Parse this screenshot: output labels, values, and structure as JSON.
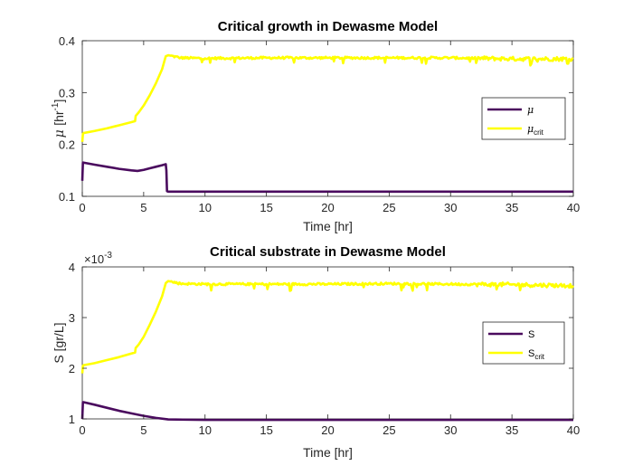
{
  "chart_data": [
    {
      "type": "line",
      "title": "Critical growth in Dewasme Model",
      "xlabel": "Time [hr]",
      "ylabel_symbol": "μ",
      "ylabel_units": "[hr",
      "ylabel_exp": "-1",
      "ylabel_close": "]",
      "xlim": [
        0,
        40
      ],
      "ylim": [
        0.1,
        0.4
      ],
      "xticks": [
        "0",
        "5",
        "10",
        "15",
        "20",
        "25",
        "30",
        "35",
        "40"
      ],
      "yticks": [
        "0.1",
        "0.2",
        "0.3",
        "0.4"
      ],
      "legend_position": "right",
      "series": [
        {
          "name": "μ",
          "color": "#4a0b5e",
          "x": [
            0,
            0.05,
            0.1,
            1,
            2,
            3,
            4,
            4.5,
            5,
            5.5,
            6,
            6.5,
            6.8,
            6.85,
            6.9,
            7,
            10,
            15,
            20,
            25,
            30,
            35,
            40
          ],
          "y": [
            0.13,
            0.165,
            0.165,
            0.161,
            0.157,
            0.153,
            0.15,
            0.149,
            0.151,
            0.154,
            0.157,
            0.16,
            0.162,
            0.15,
            0.11,
            0.109,
            0.109,
            0.109,
            0.109,
            0.109,
            0.109,
            0.109,
            0.109
          ]
        },
        {
          "name": "μ",
          "name_sub": "crit",
          "color": "#ffff00",
          "x": [
            0,
            0.05,
            0.1,
            1,
            2,
            3,
            4,
            4.3,
            4.35,
            4.6,
            5,
            5.5,
            6,
            6.5,
            6.8,
            7,
            8,
            10,
            15,
            20,
            25,
            30,
            35,
            40
          ],
          "y": [
            0.205,
            0.22,
            0.222,
            0.226,
            0.231,
            0.237,
            0.243,
            0.245,
            0.255,
            0.262,
            0.275,
            0.295,
            0.318,
            0.345,
            0.37,
            0.372,
            0.367,
            0.366,
            0.367,
            0.367,
            0.367,
            0.367,
            0.365,
            0.365
          ]
        }
      ]
    },
    {
      "type": "line",
      "title": "Critical substrate in Dewasme Model",
      "xlabel": "Time [hr]",
      "ylabel": "S [gr/L]",
      "y_scale_prefix": "×10",
      "y_scale_exp": "-3",
      "xlim": [
        0,
        40
      ],
      "ylim": [
        1,
        4
      ],
      "xticks": [
        "0",
        "5",
        "10",
        "15",
        "20",
        "25",
        "30",
        "35",
        "40"
      ],
      "yticks": [
        "1",
        "2",
        "3",
        "4"
      ],
      "legend_position": "right",
      "series": [
        {
          "name": "S",
          "color": "#4a0b5e",
          "x": [
            0,
            0.05,
            0.1,
            1,
            2,
            3,
            4,
            5,
            6,
            7,
            10,
            15,
            20,
            25,
            30,
            35,
            40
          ],
          "y": [
            1.0,
            1.33,
            1.33,
            1.28,
            1.22,
            1.16,
            1.11,
            1.06,
            1.02,
            0.99,
            0.98,
            0.98,
            0.98,
            0.98,
            0.98,
            0.98,
            0.98
          ]
        },
        {
          "name": "S",
          "name_sub": "crit",
          "color": "#ffff00",
          "x": [
            0,
            0.05,
            0.1,
            1,
            2,
            3,
            4,
            4.3,
            4.35,
            4.6,
            5,
            5.5,
            6,
            6.5,
            6.8,
            7,
            8,
            10,
            15,
            20,
            25,
            30,
            35,
            40
          ],
          "y": [
            1.9,
            2.05,
            2.06,
            2.1,
            2.16,
            2.22,
            2.29,
            2.31,
            2.4,
            2.47,
            2.62,
            2.86,
            3.12,
            3.42,
            3.68,
            3.72,
            3.67,
            3.66,
            3.66,
            3.66,
            3.67,
            3.66,
            3.65,
            3.63
          ]
        }
      ]
    }
  ]
}
